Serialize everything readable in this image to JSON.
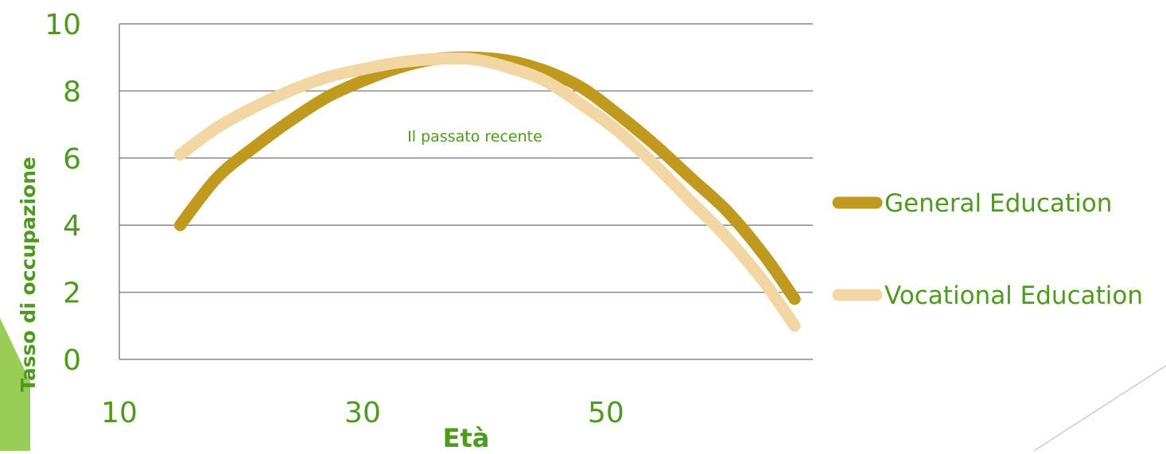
{
  "chart_data": {
    "type": "line",
    "title": "",
    "xlabel": "Età",
    "ylabel": "Tasso di occupazione",
    "annotation": "Il passato recente",
    "xlim": [
      10,
      67
    ],
    "ylim": [
      0,
      10
    ],
    "xticks": [
      10,
      30,
      50
    ],
    "yticks": [
      0,
      2,
      4,
      6,
      8,
      10
    ],
    "grid": true,
    "legend_position": "right",
    "series": [
      {
        "name": "General Education",
        "color": "#BF9A1E",
        "x": [
          15,
          18,
          21,
          24,
          27,
          30,
          33,
          36,
          39,
          42,
          45,
          48,
          51,
          54,
          57,
          60,
          63,
          65.5
        ],
        "y": [
          4.0,
          5.4,
          6.3,
          7.1,
          7.8,
          8.3,
          8.7,
          8.95,
          9.0,
          8.9,
          8.6,
          8.1,
          7.3,
          6.4,
          5.4,
          4.4,
          3.1,
          1.8
        ]
      },
      {
        "name": "Vocational Education",
        "color": "#F2D7A4",
        "x": [
          15,
          18,
          21,
          24,
          27,
          30,
          33,
          36,
          39,
          42,
          45,
          48,
          51,
          54,
          57,
          60,
          63,
          65.5
        ],
        "y": [
          6.1,
          6.9,
          7.5,
          8.0,
          8.4,
          8.65,
          8.85,
          8.95,
          8.95,
          8.7,
          8.3,
          7.6,
          6.8,
          5.8,
          4.7,
          3.6,
          2.3,
          1.0
        ]
      }
    ]
  },
  "colors": {
    "text": "#4E9A1E",
    "axis": "#888888",
    "grid": "#888888",
    "accent": "#9ACD56"
  }
}
